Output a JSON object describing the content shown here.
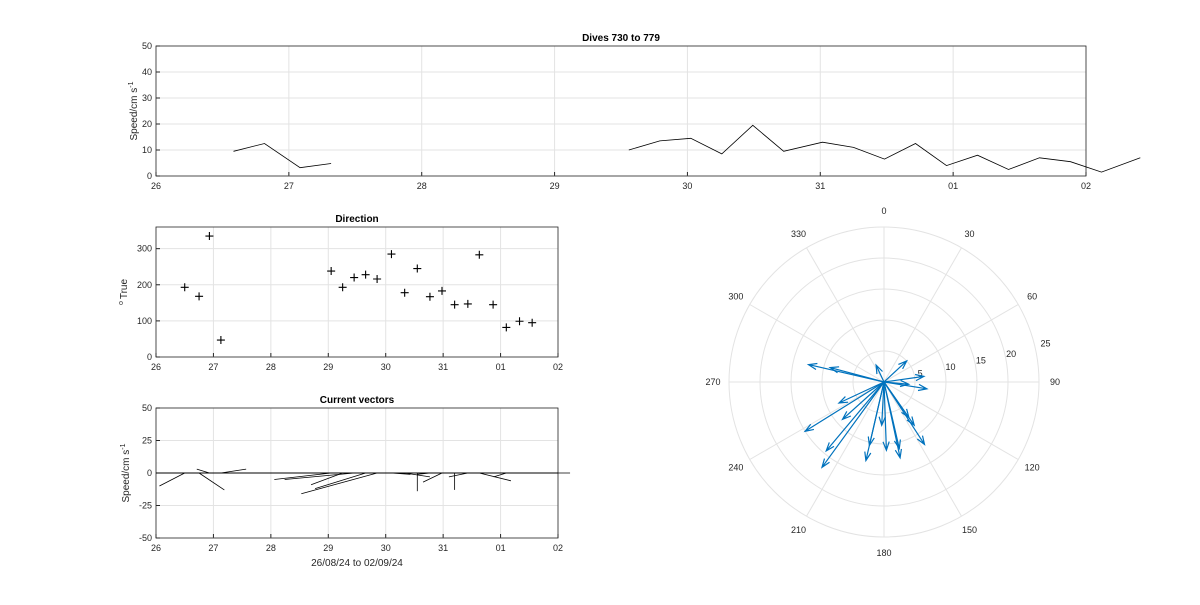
{
  "chart_data": [
    {
      "type": "line",
      "title": "Dives 730 to 779",
      "ylabel": "Speed/cm s",
      "ylabel_superscript": "-1",
      "xlim": [
        0,
        6
      ],
      "ylim": [
        0,
        50
      ],
      "xtick_labels": [
        "26",
        "27",
        "28",
        "29",
        "30",
        "31",
        "01",
        "02"
      ],
      "yticks": [
        0,
        10,
        20,
        30,
        40,
        50
      ],
      "grid": true,
      "segments": [
        [
          [
            0.5,
            9.5
          ],
          [
            0.7,
            12.5
          ],
          [
            0.93,
            3.2
          ],
          [
            1.13,
            4.8
          ]
        ],
        [
          [
            3.05,
            10
          ],
          [
            3.25,
            13.5
          ],
          [
            3.45,
            14.5
          ],
          [
            3.65,
            8.5
          ],
          [
            3.85,
            19.5
          ],
          [
            4.05,
            9.5
          ],
          [
            4.3,
            13
          ],
          [
            4.5,
            11
          ],
          [
            4.7,
            6.5
          ],
          [
            4.9,
            12.5
          ],
          [
            5.1,
            4
          ],
          [
            5.3,
            8
          ],
          [
            5.5,
            2.5
          ],
          [
            5.7,
            7
          ],
          [
            5.9,
            5.5
          ],
          [
            6.1,
            1.5
          ],
          [
            6.35,
            7
          ]
        ]
      ]
    },
    {
      "type": "scatter",
      "title": "Direction",
      "ylabel": "True",
      "ylabel_prefix": "o",
      "xlim": [
        0,
        7
      ],
      "ylim": [
        0,
        360
      ],
      "xtick_labels": [
        "26",
        "27",
        "28",
        "29",
        "30",
        "31",
        "01",
        "02"
      ],
      "yticks": [
        0,
        100,
        200,
        300
      ],
      "grid": true,
      "points": [
        [
          0.5,
          193
        ],
        [
          0.75,
          168
        ],
        [
          0.93,
          335
        ],
        [
          1.13,
          47
        ],
        [
          3.05,
          238
        ],
        [
          3.25,
          193
        ],
        [
          3.45,
          220
        ],
        [
          3.65,
          228
        ],
        [
          3.85,
          216
        ],
        [
          4.1,
          285
        ],
        [
          4.33,
          178
        ],
        [
          4.55,
          245
        ],
        [
          4.77,
          167
        ],
        [
          4.98,
          183
        ],
        [
          5.2,
          145
        ],
        [
          5.43,
          147
        ],
        [
          5.63,
          283
        ],
        [
          5.87,
          145
        ],
        [
          6.1,
          82
        ],
        [
          6.33,
          99
        ],
        [
          6.55,
          95
        ]
      ]
    },
    {
      "type": "line",
      "title": "Current vectors",
      "ylabel": "Speed/cm s",
      "ylabel_superscript": "-1",
      "xlabel": "26/08/24 to 02/09/24",
      "xlim": [
        0,
        7
      ],
      "ylim": [
        -50,
        50
      ],
      "xtick_labels": [
        "26",
        "27",
        "28",
        "29",
        "30",
        "31",
        "01",
        "02"
      ],
      "yticks": [
        -50,
        -25,
        0,
        25,
        50
      ],
      "grid": true,
      "vectors": [
        [
          0.5,
          -4,
          -10
        ],
        [
          0.75,
          4,
          -13
        ],
        [
          0.93,
          -2,
          3
        ],
        [
          1.13,
          4,
          3
        ],
        [
          3.05,
          -9,
          -5
        ],
        [
          3.25,
          -5,
          -9
        ],
        [
          3.45,
          -11,
          -5
        ],
        [
          3.65,
          -8,
          -12
        ],
        [
          3.85,
          -12,
          -16
        ],
        [
          4.1,
          3,
          -1
        ],
        [
          4.33,
          4,
          -3
        ],
        [
          4.55,
          0,
          -14
        ],
        [
          4.77,
          -2,
          -1
        ],
        [
          4.98,
          -3,
          -7
        ],
        [
          5.2,
          0,
          -13
        ],
        [
          5.43,
          -3,
          -3
        ],
        [
          5.63,
          5,
          -6
        ],
        [
          5.87,
          -1,
          0
        ],
        [
          6.1,
          -2,
          -3
        ],
        [
          6.33,
          1,
          0
        ],
        [
          6.55,
          6,
          0
        ]
      ]
    },
    {
      "type": "scatter",
      "subtype": "compass",
      "theta_labels": [
        "0",
        "30",
        "60",
        "90",
        "120",
        "150",
        "180",
        "210",
        "240",
        "270",
        "300",
        "330"
      ],
      "r_labels": [
        "5",
        "10",
        "15",
        "20",
        "25"
      ],
      "rlim": [
        0,
        25
      ],
      "color": "#0072BD",
      "vectors": [
        [
          193,
          13
        ],
        [
          168,
          12.5
        ],
        [
          335,
          3
        ],
        [
          47,
          5
        ],
        [
          238,
          15
        ],
        [
          193,
          10.5
        ],
        [
          220,
          14.5
        ],
        [
          228,
          9
        ],
        [
          216,
          17
        ],
        [
          285,
          9
        ],
        [
          178,
          11
        ],
        [
          245,
          8
        ],
        [
          167,
          11
        ],
        [
          183,
          7
        ],
        [
          145,
          8.5
        ],
        [
          147,
          12
        ],
        [
          283,
          12.5
        ],
        [
          145,
          7
        ],
        [
          82,
          6.5
        ],
        [
          99,
          7
        ],
        [
          95,
          4
        ]
      ]
    }
  ]
}
